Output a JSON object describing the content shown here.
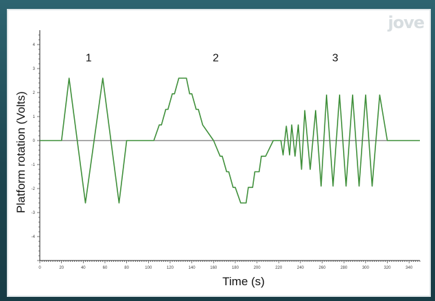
{
  "watermark": {
    "text": "jove"
  },
  "colors": {
    "trace": "#3f8f3a",
    "baseline": "#555555",
    "axis": "#222222",
    "background": "#1f4a55"
  },
  "chart_data": {
    "type": "line",
    "title": "",
    "xlabel": "Time (s)",
    "ylabel": "Platform rotation (Volts)",
    "xlim": [
      0,
      350
    ],
    "ylim": [
      -5,
      4.6
    ],
    "xticks": [
      0,
      20,
      40,
      60,
      80,
      100,
      120,
      140,
      160,
      180,
      200,
      220,
      240,
      260,
      280,
      300,
      320,
      340
    ],
    "xtick_labels": [
      "0",
      "20",
      "40",
      "60",
      "80",
      "100",
      "120",
      "140",
      "160",
      "180",
      "200",
      "220",
      "240",
      "260",
      "280",
      "300",
      "320",
      "340"
    ],
    "yticks": [
      -4,
      -3,
      -2,
      -1,
      0,
      1,
      2,
      3,
      4
    ],
    "ytick_labels": [
      "-4",
      "-3",
      "-2",
      "-1",
      "0",
      "1",
      "2",
      "3",
      "4"
    ],
    "grid": false,
    "annotations": [
      {
        "text": "1",
        "x": 45,
        "y": 3.3
      },
      {
        "text": "2",
        "x": 162,
        "y": 3.3
      },
      {
        "text": "3",
        "x": 272,
        "y": 3.3
      }
    ],
    "series": [
      {
        "x": [
          0,
          20,
          27,
          42,
          58,
          73,
          80,
          90,
          105,
          110,
          112,
          116,
          118,
          122,
          124,
          128,
          135,
          138,
          140,
          144,
          146,
          150,
          160,
          166,
          168,
          172,
          174,
          178,
          180,
          185,
          190,
          192,
          196,
          198,
          202,
          204,
          208,
          215,
          222,
          224,
          227,
          230,
          232,
          235,
          238,
          241,
          244,
          249,
          254,
          259,
          264,
          270,
          276,
          282,
          288,
          294,
          300,
          306,
          313,
          320,
          326,
          350
        ],
        "y": [
          0,
          0,
          2.6,
          -2.6,
          2.6,
          -2.6,
          0,
          0,
          0,
          0.65,
          0.65,
          1.3,
          1.3,
          1.95,
          1.95,
          2.6,
          2.6,
          1.95,
          1.95,
          1.3,
          1.3,
          0.65,
          0,
          -0.65,
          -0.65,
          -1.3,
          -1.3,
          -1.95,
          -1.95,
          -2.6,
          -2.6,
          -1.95,
          -1.95,
          -1.3,
          -1.3,
          -0.65,
          -0.65,
          0,
          0,
          -0.6,
          0.6,
          -0.6,
          0.65,
          -0.65,
          0.65,
          -1.2,
          1.25,
          -1.2,
          1.25,
          -1.9,
          1.9,
          -1.9,
          1.9,
          -1.9,
          1.9,
          -1.9,
          1.9,
          -1.9,
          1.9,
          0,
          0,
          0
        ]
      }
    ]
  }
}
